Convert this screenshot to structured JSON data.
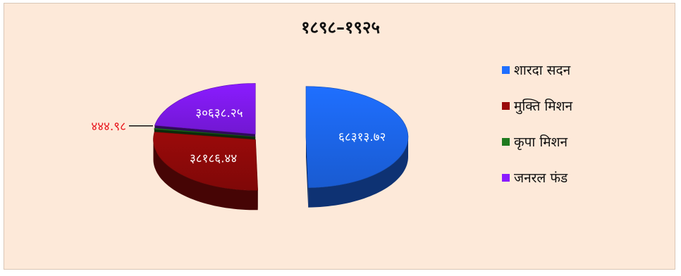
{
  "chart_data": {
    "type": "pie",
    "title": "१८९८–१९२५",
    "categories": [
      "शारदा सदन",
      "मुक्ति मिशन",
      "कृपा मिशन",
      "जनरल फंड"
    ],
    "values": [
      68313.72,
      38186.44,
      444.98,
      30638.25
    ],
    "value_labels": [
      "६८३१३.७२",
      "३८१८६.४४",
      "४४४.९८",
      "३०६३८.२५"
    ],
    "colors": [
      "#1f6fff",
      "#9b0a0a",
      "#1f7a1f",
      "#8a1cff"
    ],
    "legend": "right",
    "exploded": true,
    "three_d": true
  }
}
